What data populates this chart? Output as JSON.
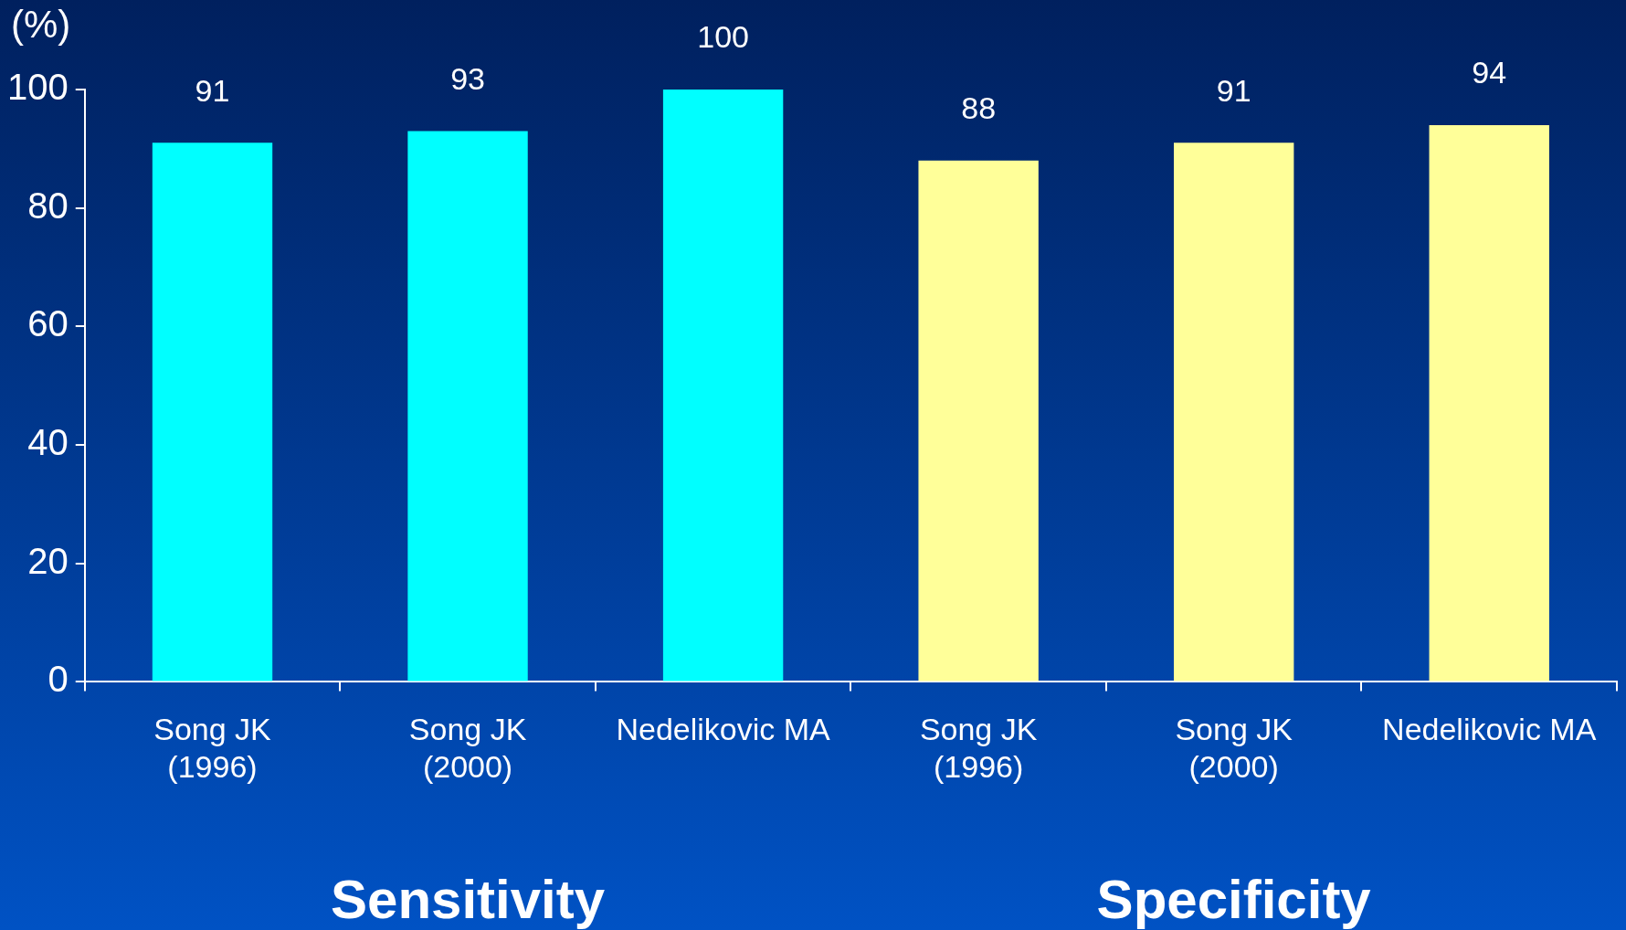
{
  "chart_data": {
    "type": "bar",
    "ylabel": "(%)",
    "categories": [
      "Song JK\n(1996)",
      "Song JK\n(2000)",
      "Nedelikovic MA",
      "Song JK\n(1996)",
      "Song JK\n(2000)",
      "Nedelikovic MA"
    ],
    "values": [
      91,
      93,
      100,
      88,
      91,
      94
    ],
    "colors": [
      "#00ffff",
      "#00ffff",
      "#00ffff",
      "#ffff99",
      "#ffff99",
      "#ffff99"
    ],
    "ylim": [
      0,
      100
    ],
    "yticks": [
      0,
      20,
      40,
      60,
      80,
      100
    ],
    "data_labels": true,
    "grid": false,
    "legend": false,
    "annotations": [
      "Sensitivity",
      "Specificity"
    ]
  }
}
